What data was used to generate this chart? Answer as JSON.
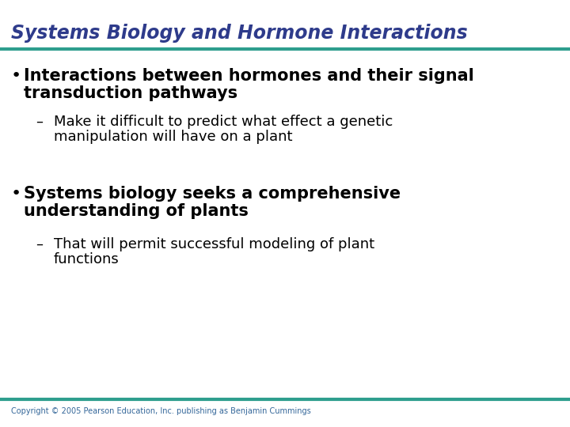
{
  "title": "Systems Biology and Hormone Interactions",
  "title_color": "#2E3B8B",
  "title_fontsize": 17,
  "line_color": "#2E9E8E",
  "background_color": "#FFFFFF",
  "bullet1_line1": "Interactions between hormones and their signal",
  "bullet1_line2": "transduction pathways",
  "sub1_line1": "Make it difficult to predict what effect a genetic",
  "sub1_line2": "manipulation will have on a plant",
  "bullet2_line1": "Systems biology seeks a comprehensive",
  "bullet2_line2": "understanding of plants",
  "sub2_line1": "That will permit successful modeling of plant",
  "sub2_line2": "functions",
  "bullet_color": "#000000",
  "bullet_fontsize": 15,
  "sub_fontsize": 13,
  "copyright": "Copyright © 2005 Pearson Education, Inc. publishing as Benjamin Cummings",
  "copyright_fontsize": 7,
  "copyright_color": "#336699"
}
